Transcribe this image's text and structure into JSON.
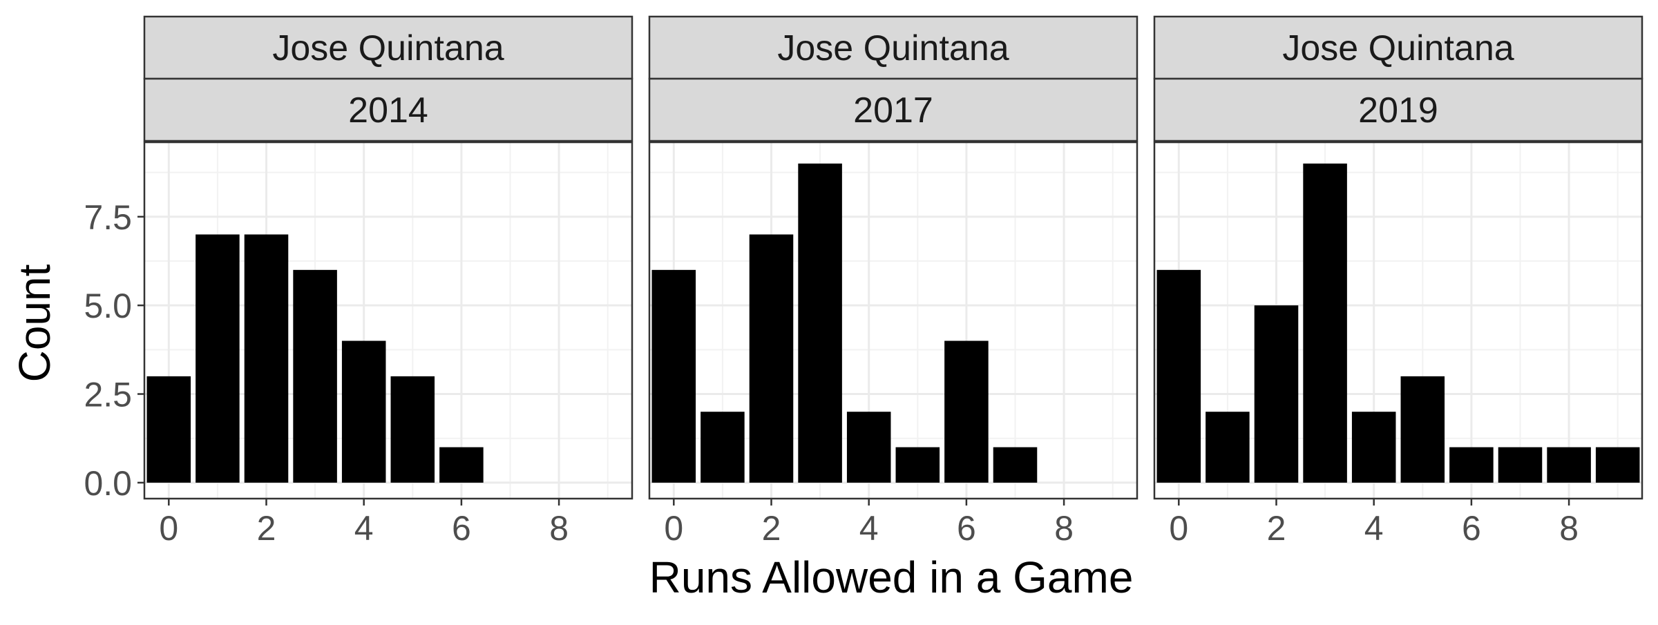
{
  "figure": {
    "xlabel": "Runs Allowed in a Game",
    "ylabel": "Count"
  },
  "colors": {
    "bar": "#000000",
    "strip_fill": "#d9d9d9",
    "panel_border": "#333333",
    "grid_major": "#ebebeb",
    "grid_minor": "#f2f2f2",
    "tick_label": "#4d4d4d",
    "axis_title": "#000000"
  },
  "chart_data": [
    {
      "type": "bar",
      "strip_top": "Jose Quintana",
      "strip_bottom": "2014",
      "x": [
        0,
        1,
        2,
        3,
        4,
        5,
        6
      ],
      "values": [
        3,
        7,
        7,
        6,
        4,
        3,
        1
      ],
      "xlim": [
        -0.5,
        9.5
      ],
      "ylim": [
        0,
        9
      ],
      "xticks": [
        0,
        2,
        4,
        6,
        8
      ],
      "yticks": [
        0.0,
        2.5,
        5.0,
        7.5
      ],
      "ytick_labels": [
        "0.0",
        "2.5",
        "5.0",
        "7.5"
      ],
      "grid": true
    },
    {
      "type": "bar",
      "strip_top": "Jose Quintana",
      "strip_bottom": "2017",
      "x": [
        0,
        1,
        2,
        3,
        4,
        5,
        6,
        7
      ],
      "values": [
        6,
        2,
        7,
        9,
        2,
        1,
        4,
        1
      ],
      "xlim": [
        -0.5,
        9.5
      ],
      "ylim": [
        0,
        9
      ],
      "xticks": [
        0,
        2,
        4,
        6,
        8
      ],
      "grid": true
    },
    {
      "type": "bar",
      "strip_top": "Jose Quintana",
      "strip_bottom": "2019",
      "x": [
        0,
        1,
        2,
        3,
        4,
        5,
        6,
        7,
        8,
        9
      ],
      "values": [
        6,
        2,
        5,
        9,
        2,
        3,
        1,
        1,
        1,
        1
      ],
      "xlim": [
        -0.5,
        9.5
      ],
      "ylim": [
        0,
        9
      ],
      "xticks": [
        0,
        2,
        4,
        6,
        8
      ],
      "grid": true
    }
  ]
}
